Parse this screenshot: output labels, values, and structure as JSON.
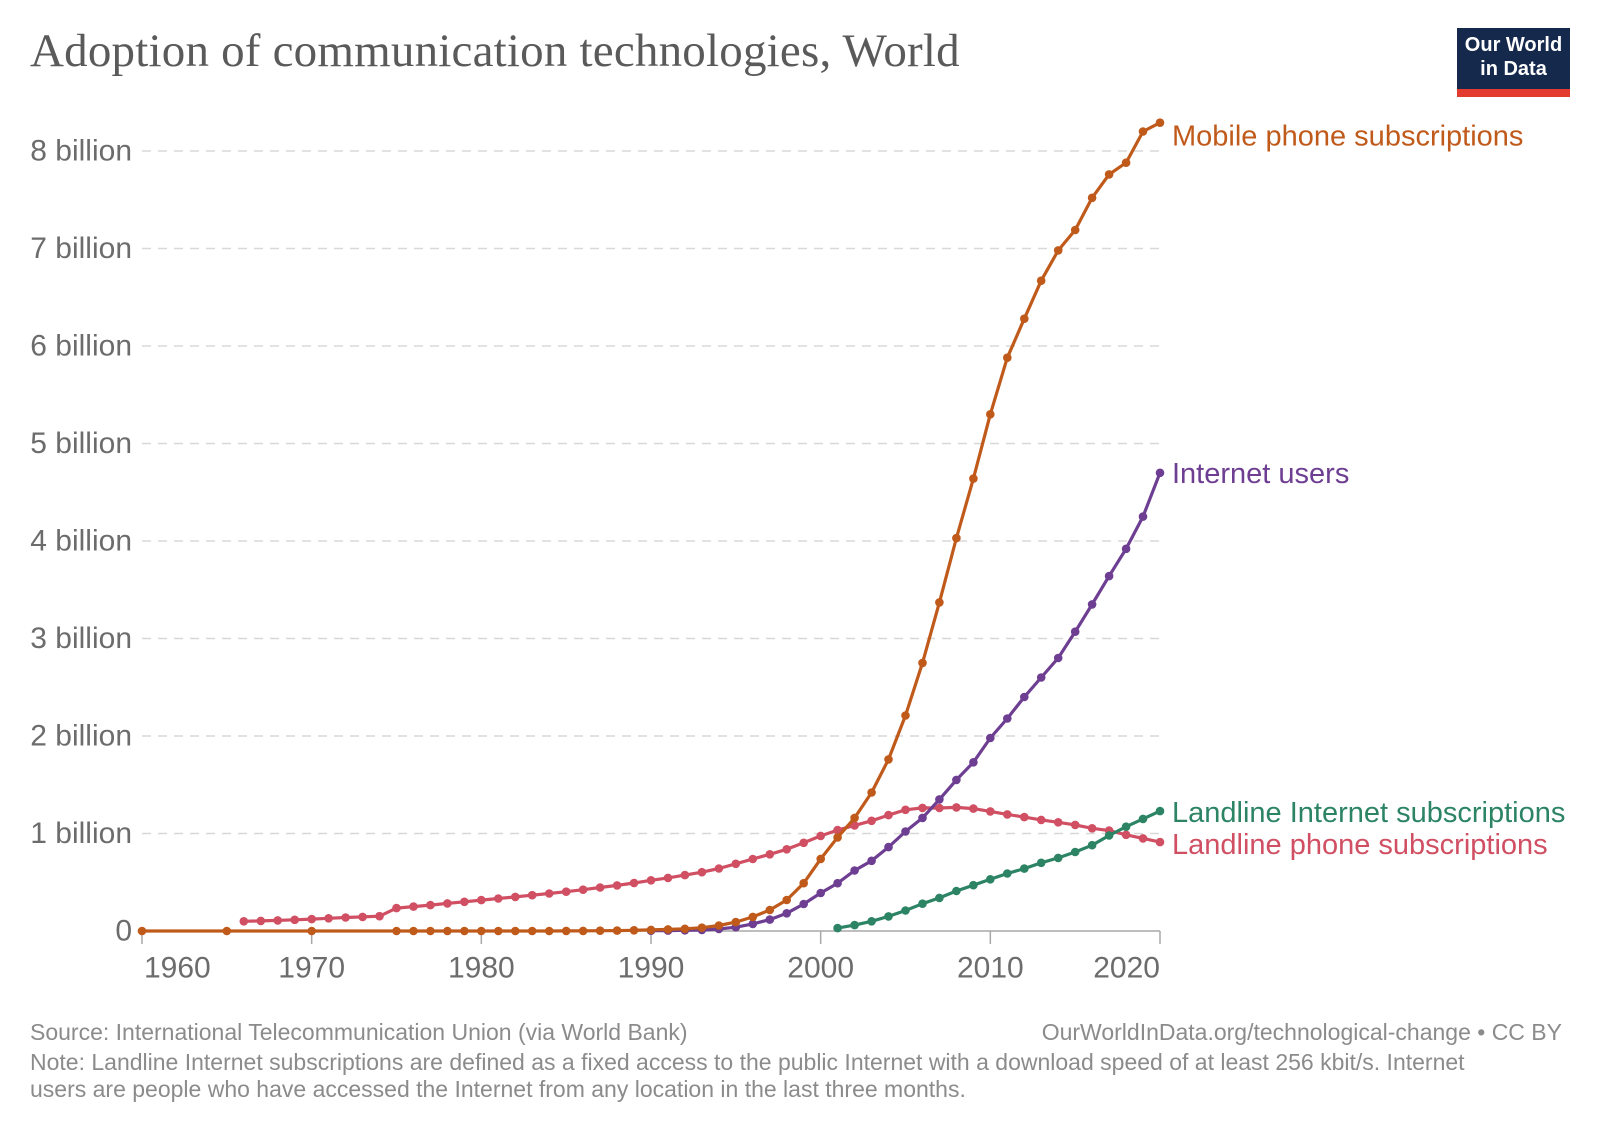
{
  "header": {
    "title": "Adoption of communication technologies, World",
    "logo": {
      "line1": "Our World",
      "line2": "in Data"
    }
  },
  "chart_data": {
    "type": "line",
    "title": "Adoption of communication technologies, World",
    "xlabel": "",
    "ylabel": "",
    "x_axis": {
      "tick_years": [
        1960,
        1970,
        1980,
        1990,
        2000,
        2010,
        2020
      ],
      "range": [
        1960,
        2020
      ]
    },
    "y_axis": {
      "tick_labels": [
        "0",
        "1 billion",
        "2 billion",
        "3 billion",
        "4 billion",
        "5 billion",
        "6 billion",
        "7 billion",
        "8 billion"
      ],
      "tick_values_billions": [
        0,
        1,
        2,
        3,
        4,
        5,
        6,
        7,
        8
      ],
      "range_billions": [
        0,
        8.5
      ],
      "gridlines": "dashed"
    },
    "legend_position": "labels-at-line-ends",
    "unit": "billions of subscriptions / users",
    "series": [
      {
        "id": "mobile",
        "label": "Mobile phone subscriptions",
        "color": "#c05a1b",
        "points": [
          [
            1960,
            0
          ],
          [
            1965,
            0
          ],
          [
            1970,
            0
          ],
          [
            1975,
            0
          ],
          [
            1976,
            0
          ],
          [
            1977,
            0
          ],
          [
            1978,
            0
          ],
          [
            1979,
            0
          ],
          [
            1980,
            0
          ],
          [
            1981,
            0
          ],
          [
            1982,
            0
          ],
          [
            1983,
            0
          ],
          [
            1984,
            0
          ],
          [
            1985,
            0.001
          ],
          [
            1986,
            0.001
          ],
          [
            1987,
            0.003
          ],
          [
            1988,
            0.004
          ],
          [
            1989,
            0.007
          ],
          [
            1990,
            0.011
          ],
          [
            1991,
            0.016
          ],
          [
            1992,
            0.023
          ],
          [
            1993,
            0.034
          ],
          [
            1994,
            0.056
          ],
          [
            1995,
            0.091
          ],
          [
            1996,
            0.145
          ],
          [
            1997,
            0.215
          ],
          [
            1998,
            0.318
          ],
          [
            1999,
            0.49
          ],
          [
            2000,
            0.74
          ],
          [
            2001,
            0.96
          ],
          [
            2002,
            1.16
          ],
          [
            2003,
            1.42
          ],
          [
            2004,
            1.76
          ],
          [
            2005,
            2.21
          ],
          [
            2006,
            2.75
          ],
          [
            2007,
            3.37
          ],
          [
            2008,
            4.03
          ],
          [
            2009,
            4.64
          ],
          [
            2010,
            5.3
          ],
          [
            2011,
            5.88
          ],
          [
            2012,
            6.28
          ],
          [
            2013,
            6.67
          ],
          [
            2014,
            6.98
          ],
          [
            2015,
            7.19
          ],
          [
            2016,
            7.52
          ],
          [
            2017,
            7.76
          ],
          [
            2018,
            7.88
          ],
          [
            2019,
            8.2
          ],
          [
            2020,
            8.29
          ]
        ]
      },
      {
        "id": "internet",
        "label": "Internet users",
        "color": "#6d3e91",
        "points": [
          [
            1990,
            0.003
          ],
          [
            1991,
            0.004
          ],
          [
            1992,
            0.007
          ],
          [
            1993,
            0.01
          ],
          [
            1994,
            0.021
          ],
          [
            1995,
            0.039
          ],
          [
            1996,
            0.073
          ],
          [
            1997,
            0.117
          ],
          [
            1998,
            0.182
          ],
          [
            1999,
            0.277
          ],
          [
            2000,
            0.39
          ],
          [
            2001,
            0.49
          ],
          [
            2002,
            0.62
          ],
          [
            2003,
            0.72
          ],
          [
            2004,
            0.86
          ],
          [
            2005,
            1.02
          ],
          [
            2006,
            1.16
          ],
          [
            2007,
            1.35
          ],
          [
            2008,
            1.55
          ],
          [
            2009,
            1.73
          ],
          [
            2010,
            1.98
          ],
          [
            2011,
            2.18
          ],
          [
            2012,
            2.4
          ],
          [
            2013,
            2.6
          ],
          [
            2014,
            2.8
          ],
          [
            2015,
            3.07
          ],
          [
            2016,
            3.35
          ],
          [
            2017,
            3.64
          ],
          [
            2018,
            3.92
          ],
          [
            2019,
            4.25
          ],
          [
            2020,
            4.7
          ]
        ]
      },
      {
        "id": "landline_internet",
        "label": "Landline Internet subscriptions",
        "color": "#2c8465",
        "points": [
          [
            2001,
            0.03
          ],
          [
            2002,
            0.06
          ],
          [
            2003,
            0.1
          ],
          [
            2004,
            0.15
          ],
          [
            2005,
            0.21
          ],
          [
            2006,
            0.28
          ],
          [
            2007,
            0.34
          ],
          [
            2008,
            0.41
          ],
          [
            2009,
            0.47
          ],
          [
            2010,
            0.53
          ],
          [
            2011,
            0.59
          ],
          [
            2012,
            0.64
          ],
          [
            2013,
            0.7
          ],
          [
            2014,
            0.75
          ],
          [
            2015,
            0.81
          ],
          [
            2016,
            0.88
          ],
          [
            2017,
            0.98
          ],
          [
            2018,
            1.07
          ],
          [
            2019,
            1.15
          ],
          [
            2020,
            1.23
          ]
        ]
      },
      {
        "id": "landline_phone",
        "label": "Landline phone subscriptions",
        "color": "#d04f63",
        "points": [
          [
            1966,
            0.1
          ],
          [
            1967,
            0.104
          ],
          [
            1968,
            0.109
          ],
          [
            1969,
            0.115
          ],
          [
            1970,
            0.122
          ],
          [
            1971,
            0.13
          ],
          [
            1972,
            0.138
          ],
          [
            1973,
            0.145
          ],
          [
            1974,
            0.152
          ],
          [
            1975,
            0.235
          ],
          [
            1976,
            0.25
          ],
          [
            1977,
            0.266
          ],
          [
            1978,
            0.283
          ],
          [
            1979,
            0.3
          ],
          [
            1980,
            0.317
          ],
          [
            1981,
            0.333
          ],
          [
            1982,
            0.35
          ],
          [
            1983,
            0.367
          ],
          [
            1984,
            0.385
          ],
          [
            1985,
            0.403
          ],
          [
            1986,
            0.424
          ],
          [
            1987,
            0.446
          ],
          [
            1988,
            0.468
          ],
          [
            1989,
            0.492
          ],
          [
            1990,
            0.52
          ],
          [
            1991,
            0.545
          ],
          [
            1992,
            0.573
          ],
          [
            1993,
            0.603
          ],
          [
            1994,
            0.641
          ],
          [
            1995,
            0.689
          ],
          [
            1996,
            0.738
          ],
          [
            1997,
            0.787
          ],
          [
            1998,
            0.838
          ],
          [
            1999,
            0.905
          ],
          [
            2000,
            0.975
          ],
          [
            2001,
            1.035
          ],
          [
            2002,
            1.083
          ],
          [
            2003,
            1.13
          ],
          [
            2004,
            1.189
          ],
          [
            2005,
            1.243
          ],
          [
            2006,
            1.263
          ],
          [
            2007,
            1.262
          ],
          [
            2008,
            1.268
          ],
          [
            2009,
            1.255
          ],
          [
            2010,
            1.227
          ],
          [
            2011,
            1.196
          ],
          [
            2012,
            1.168
          ],
          [
            2013,
            1.14
          ],
          [
            2014,
            1.115
          ],
          [
            2015,
            1.088
          ],
          [
            2016,
            1.053
          ],
          [
            2017,
            1.03
          ],
          [
            2018,
            0.987
          ],
          [
            2019,
            0.95
          ],
          [
            2020,
            0.912
          ]
        ]
      }
    ]
  },
  "footer": {
    "source": "Source: International Telecommunication Union (via World Bank)",
    "attribution": "OurWorldInData.org/technological-change • CC BY",
    "note": "Note: Landline Internet subscriptions are defined as a fixed access to the public Internet with a download speed of at least 256 kbit/s. Internet users are people who have accessed the Internet from any location in the last three months."
  },
  "colors": {
    "title_text": "#5a5a5a",
    "axis_text": "#6c6c6c",
    "axis_line": "#a8a8a8",
    "gridline": "#d8d8d8",
    "footer_text": "#8b8b8b",
    "logo_background": "#15294d",
    "logo_stripe": "#e33b30"
  }
}
